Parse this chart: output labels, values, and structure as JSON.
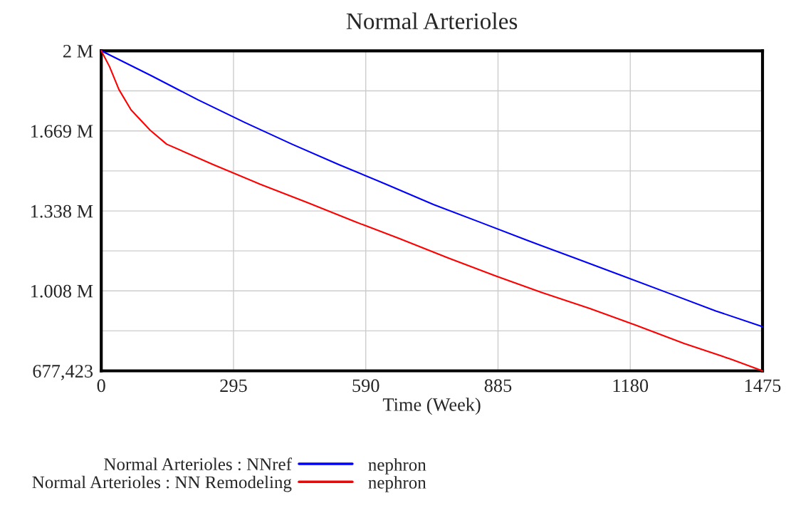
{
  "chart_data": {
    "type": "line",
    "title": "Normal Arterioles",
    "xlabel": "Time (Week)",
    "xlim": [
      0,
      1475
    ],
    "xticks": [
      0,
      295,
      590,
      885,
      1180,
      1475
    ],
    "ylim": [
      677423,
      2000000
    ],
    "yticks": [
      {
        "value": 677423,
        "label": "677,423"
      },
      {
        "value": 842700,
        "label": null
      },
      {
        "value": 1008000,
        "label": "1.008 M"
      },
      {
        "value": 1173000,
        "label": null
      },
      {
        "value": 1338000,
        "label": "1.338 M"
      },
      {
        "value": 1503500,
        "label": null
      },
      {
        "value": 1669000,
        "label": "1.669 M"
      },
      {
        "value": 1834500,
        "label": null
      },
      {
        "value": 2000000,
        "label": "2 M"
      }
    ],
    "grid": true,
    "legend": "bottom",
    "marker": "none",
    "line_style": "solid",
    "annotations": [
      "nephron",
      "nephron"
    ],
    "series": [
      {
        "name": "Normal Arterioles : NNref",
        "color": "#0000ff",
        "x": [
          0,
          110.8,
          215.1,
          320.1,
          425.5,
          529.8,
          634.8,
          741.8,
          845.8,
          949.9,
          1055.7,
          1159.8,
          1266.2,
          1370.8,
          1475
        ],
        "values": [
          2000000,
          1898000,
          1798000,
          1704000,
          1614000,
          1530000,
          1449000,
          1364000,
          1291000,
          1217000,
          1144000,
          1072000,
          998000,
          925000,
          860000
        ]
      },
      {
        "name": "Normal Arterioles : NN Remodeling",
        "color": "#ff0000",
        "x": [
          0,
          18.4,
          39.4,
          66.5,
          109.1,
          145.9,
          249.7,
          354.1,
          460.6,
          565.6,
          663.7,
          773.6,
          880.6,
          984.6,
          1089.8,
          1192.7,
          1299.7,
          1403.9,
          1475
        ],
        "values": [
          2000000,
          1935000,
          1840000,
          1756000,
          1672000,
          1614000,
          1530000,
          1449000,
          1372000,
          1294000,
          1225000,
          1144000,
          1069000,
          1000000,
          935000,
          866000,
          791000,
          726000,
          677423
        ]
      }
    ]
  }
}
